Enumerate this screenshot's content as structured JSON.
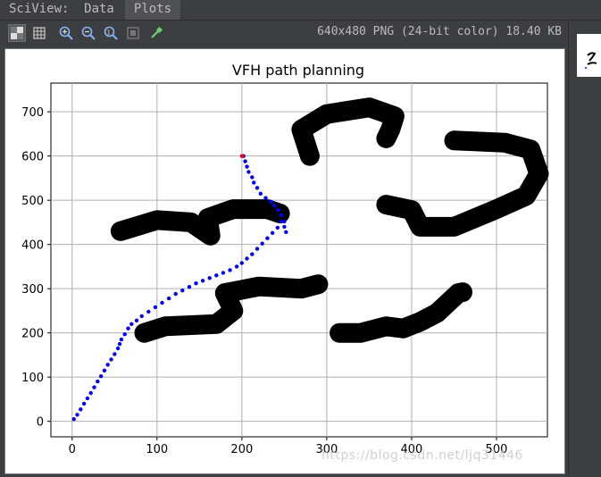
{
  "tabs": {
    "sciview": "SciView:",
    "data": "Data",
    "plots": "Plots"
  },
  "toolbar": {
    "icons": [
      "checker-bg-icon",
      "grid-icon",
      "zoom-in-icon",
      "zoom-out-icon",
      "actual-size-icon",
      "fit-icon",
      "color-picker-icon"
    ],
    "image_info": "640x480 PNG (24-bit color) 18.40 KB"
  },
  "watermark": "https://blog.csdn.net/ljq31446",
  "colors": {
    "path": "#0000ff",
    "goal": "#ff0000",
    "obstacle": "#000000"
  },
  "chart_data": {
    "type": "scatter",
    "title": "VFH path planning",
    "xlabel": "",
    "ylabel": "",
    "xlim": [
      -25,
      560
    ],
    "ylim": [
      -35,
      765
    ],
    "xticks": [
      0,
      100,
      200,
      300,
      400,
      500
    ],
    "yticks": [
      0,
      100,
      200,
      300,
      400,
      500,
      600,
      700
    ],
    "grid": true,
    "series": [
      {
        "marker": "dot",
        "color": "#0000ff",
        "x": [
          2,
          6,
          10,
          14,
          18,
          22,
          26,
          30,
          34,
          38,
          42,
          46,
          50,
          54,
          56,
          58,
          62,
          66,
          70,
          76,
          82,
          90,
          98,
          106,
          114,
          122,
          130,
          138,
          146,
          154,
          162,
          170,
          178,
          186,
          194,
          200,
          206,
          212,
          218,
          224,
          230,
          236,
          242,
          246,
          250,
          252,
          250,
          246,
          242,
          238,
          234,
          228,
          222,
          218,
          214,
          212,
          208,
          206,
          204,
          202
        ],
        "y": [
          5,
          15,
          27,
          40,
          52,
          64,
          77,
          90,
          102,
          115,
          128,
          140,
          152,
          165,
          175,
          185,
          197,
          210,
          220,
          228,
          238,
          248,
          258,
          268,
          278,
          288,
          296,
          304,
          312,
          318,
          324,
          330,
          336,
          342,
          350,
          358,
          368,
          378,
          390,
          402,
          414,
          426,
          438,
          452,
          440,
          428,
          452,
          466,
          478,
          488,
          497,
          505,
          515,
          528,
          540,
          552,
          564,
          576,
          588,
          600
        ]
      },
      {
        "name": "",
        "marker": "dot",
        "color": "#ff0000",
        "x": [
          200
        ],
        "y": [
          600
        ]
      }
    ],
    "obstacles": [
      {
        "points": [
          [
            57,
            430
          ],
          [
            100,
            455
          ],
          [
            140,
            450
          ],
          [
            163,
            420
          ],
          [
            160,
            460
          ],
          [
            190,
            480
          ],
          [
            230,
            480
          ],
          [
            245,
            470
          ]
        ]
      },
      {
        "points": [
          [
            85,
            200
          ],
          [
            110,
            215
          ],
          [
            170,
            220
          ],
          [
            190,
            250
          ],
          [
            180,
            290
          ],
          [
            220,
            305
          ],
          [
            270,
            300
          ],
          [
            290,
            310
          ]
        ]
      },
      {
        "points": [
          [
            280,
            600
          ],
          [
            270,
            660
          ],
          [
            300,
            695
          ],
          [
            350,
            710
          ],
          [
            380,
            690
          ],
          [
            375,
            660
          ],
          [
            370,
            640
          ]
        ]
      },
      {
        "points": [
          [
            315,
            200
          ],
          [
            340,
            200
          ],
          [
            370,
            215
          ],
          [
            390,
            210
          ],
          [
            410,
            225
          ],
          [
            430,
            245
          ],
          [
            455,
            290
          ],
          [
            460,
            292
          ]
        ]
      },
      {
        "points": [
          [
            370,
            490
          ],
          [
            400,
            478
          ],
          [
            410,
            440
          ],
          [
            450,
            440
          ],
          [
            500,
            480
          ],
          [
            535,
            510
          ],
          [
            550,
            560
          ],
          [
            540,
            615
          ],
          [
            510,
            630
          ],
          [
            450,
            635
          ]
        ]
      }
    ]
  }
}
